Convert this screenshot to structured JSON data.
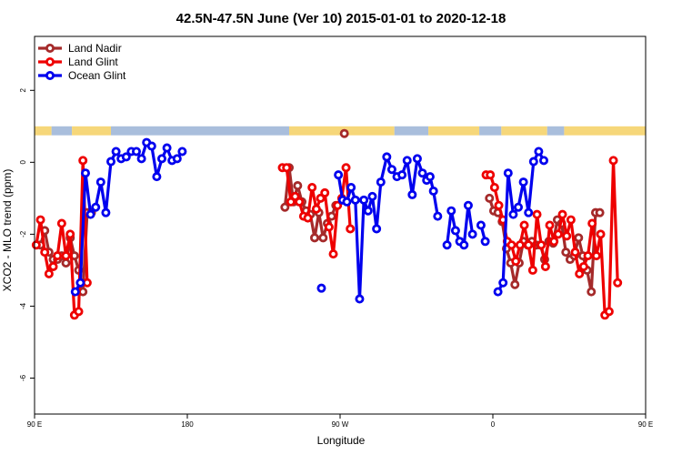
{
  "chart_data": {
    "type": "line",
    "title": "42.5N-47.5N June (Ver 10)   2015-01-01 to 2020-12-18",
    "xlabel": "Longitude",
    "ylabel": "XCO2 - MLO trend (ppm)",
    "xlim": [
      90,
      450
    ],
    "ylim": [
      -7,
      3.5
    ],
    "x_ticks": [
      {
        "value": 90,
        "label": "90 E"
      },
      {
        "value": 180,
        "label": "180"
      },
      {
        "value": 270,
        "label": "90 W"
      },
      {
        "value": 360,
        "label": "0"
      },
      {
        "value": 450,
        "label": "90 E"
      },
      {
        "value": 540,
        "label": "180"
      }
    ],
    "y_ticks": [
      {
        "value": -6,
        "label": "-6"
      },
      {
        "value": -4,
        "label": "-4"
      },
      {
        "value": -2,
        "label": "-2"
      },
      {
        "value": 0,
        "label": "0"
      },
      {
        "value": 2,
        "label": "2"
      }
    ],
    "grid": false,
    "legend_position": "top-left",
    "surface_band": {
      "y_range": [
        0.75,
        1.0
      ],
      "land_color": "#f6d77a",
      "ocean_color": "#a9bedc",
      "segments": [
        {
          "from": 90,
          "to": 100,
          "type": "land"
        },
        {
          "from": 100,
          "to": 112,
          "type": "ocean"
        },
        {
          "from": 112,
          "to": 135,
          "type": "land"
        },
        {
          "from": 135,
          "to": 240,
          "type": "ocean"
        },
        {
          "from": 240,
          "to": 302,
          "type": "land"
        },
        {
          "from": 302,
          "to": 322,
          "type": "ocean"
        },
        {
          "from": 322,
          "to": 352,
          "type": "land"
        },
        {
          "from": 352,
          "to": 365,
          "type": "ocean"
        },
        {
          "from": 365,
          "to": 392,
          "type": "land"
        },
        {
          "from": 392,
          "to": 402,
          "type": "ocean"
        },
        {
          "from": 402,
          "to": 450,
          "type": "land"
        },
        {
          "from": 450,
          "to": 472,
          "type": "ocean"
        },
        {
          "from": 472,
          "to": 495,
          "type": "land"
        },
        {
          "from": 495,
          "to": 540,
          "type": "ocean"
        }
      ]
    },
    "series": [
      {
        "name": "Land Nadir",
        "color": "#a52a2a",
        "segments": [
          [
            [
              93.5,
              -2.3
            ],
            [
              96,
              -1.9
            ],
            [
              98.5,
              -2.5
            ],
            [
              101,
              -2.7
            ],
            [
              103.5,
              -2.7
            ],
            [
              106,
              -2.6
            ],
            [
              108.5,
              -2.8
            ],
            [
              111,
              -2.1
            ],
            [
              113.5,
              -2.6
            ],
            [
              116,
              -3.0
            ],
            [
              118.5,
              -3.6
            ],
            [
              121,
              -1.4
            ],
            [
              123.5,
              -1.4
            ]
          ],
          [
            [
              237.5,
              -1.25
            ],
            [
              240,
              -0.15
            ],
            [
              242.5,
              -1.1
            ],
            [
              245,
              -0.65
            ],
            [
              247.5,
              -1.1
            ],
            [
              250,
              -1.35
            ],
            [
              252.5,
              -1.45
            ],
            [
              255,
              -2.1
            ],
            [
              257.5,
              -1.4
            ],
            [
              260,
              -2.1
            ],
            [
              262.5,
              -1.7
            ],
            [
              265,
              -1.5
            ],
            [
              267.5,
              -1.2
            ]
          ],
          [
            [
              272.5,
              0.8
            ]
          ],
          [
            [
              358,
              -1.0
            ],
            [
              360.5,
              -1.35
            ],
            [
              363,
              -1.4
            ],
            [
              365.5,
              -1.65
            ],
            [
              368,
              -2.4
            ],
            [
              370.5,
              -2.8
            ],
            [
              373,
              -3.4
            ],
            [
              375.5,
              -2.8
            ],
            [
              378,
              -2.2
            ],
            [
              380.5,
              -2.3
            ],
            [
              383,
              -2.2
            ],
            [
              385.5,
              -2.3
            ],
            [
              388,
              -2.3
            ],
            [
              390.5,
              -2.7
            ],
            [
              393,
              -2.2
            ],
            [
              395.5,
              -2.25
            ],
            [
              398,
              -1.6
            ],
            [
              400.5,
              -1.7
            ],
            [
              403,
              -2.5
            ],
            [
              405.5,
              -2.7
            ],
            [
              408,
              -2.6
            ],
            [
              410.5,
              -2.1
            ],
            [
              413,
              -2.6
            ],
            [
              415.5,
              -3.0
            ],
            [
              418,
              -3.6
            ],
            [
              420.5,
              -1.4
            ],
            [
              423,
              -1.4
            ]
          ]
        ]
      },
      {
        "name": "Land Glint",
        "color": "#ee0000",
        "segments": [
          [
            [
              91,
              -2.3
            ],
            [
              93.5,
              -1.6
            ],
            [
              96,
              -2.5
            ],
            [
              98.5,
              -3.1
            ],
            [
              101,
              -2.9
            ],
            [
              103.5,
              -2.6
            ],
            [
              106,
              -1.7
            ],
            [
              108.5,
              -2.6
            ],
            [
              111,
              -2.0
            ],
            [
              113.5,
              -4.25
            ],
            [
              116,
              -4.15
            ],
            [
              118.5,
              0.05
            ],
            [
              121,
              -3.35
            ]
          ],
          [
            [
              236,
              -0.15
            ],
            [
              238.5,
              -0.15
            ],
            [
              241,
              -1.1
            ],
            [
              243.5,
              -0.95
            ],
            [
              246,
              -1.1
            ],
            [
              248.5,
              -1.5
            ],
            [
              251,
              -1.55
            ],
            [
              253.5,
              -0.7
            ],
            [
              256,
              -1.3
            ],
            [
              258.5,
              -1.0
            ],
            [
              261,
              -0.85
            ],
            [
              263.5,
              -1.8
            ],
            [
              266,
              -2.55
            ],
            [
              268.5,
              -1.2
            ],
            [
              271,
              -1.0
            ],
            [
              273.5,
              -0.15
            ],
            [
              276,
              -1.85
            ]
          ],
          [
            [
              356,
              -0.35
            ],
            [
              358.5,
              -0.35
            ],
            [
              361,
              -0.7
            ],
            [
              363.5,
              -1.2
            ],
            [
              366,
              -1.6
            ],
            [
              368.5,
              -2.2
            ],
            [
              371,
              -2.3
            ],
            [
              373.5,
              -2.75
            ],
            [
              376,
              -2.3
            ],
            [
              378.5,
              -1.75
            ],
            [
              381,
              -2.3
            ],
            [
              383.5,
              -3.0
            ],
            [
              386,
              -1.45
            ],
            [
              388.5,
              -2.3
            ],
            [
              391,
              -2.9
            ],
            [
              393.5,
              -1.75
            ],
            [
              396,
              -2.2
            ],
            [
              398.5,
              -2.0
            ],
            [
              401,
              -1.45
            ],
            [
              403.5,
              -2.05
            ],
            [
              406,
              -1.6
            ],
            [
              408.5,
              -2.5
            ],
            [
              411,
              -3.1
            ],
            [
              413.5,
              -2.9
            ],
            [
              416,
              -2.6
            ],
            [
              418.5,
              -1.7
            ],
            [
              421,
              -2.6
            ],
            [
              423.5,
              -2.0
            ],
            [
              426,
              -4.25
            ],
            [
              428.5,
              -4.15
            ],
            [
              431,
              0.05
            ],
            [
              433.5,
              -3.35
            ]
          ]
        ]
      },
      {
        "name": "Ocean Glint",
        "color": "#0000ee",
        "segments": [
          [
            [
              114,
              -3.6
            ],
            [
              117,
              -3.35
            ],
            [
              120,
              -0.3
            ],
            [
              123,
              -1.45
            ],
            [
              126,
              -1.25
            ],
            [
              129,
              -0.55
            ],
            [
              132,
              -1.4
            ],
            [
              135,
              0.02
            ],
            [
              138,
              0.3
            ],
            [
              141,
              0.1
            ],
            [
              144,
              0.15
            ],
            [
              147,
              0.3
            ],
            [
              150,
              0.3
            ],
            [
              153,
              0.1
            ],
            [
              156,
              0.55
            ],
            [
              159,
              0.45
            ],
            [
              162,
              -0.4
            ],
            [
              165,
              0.1
            ],
            [
              168,
              0.4
            ],
            [
              171,
              0.05
            ],
            [
              174,
              0.1
            ],
            [
              177,
              0.3
            ]
          ],
          [
            [
              259,
              -3.5
            ]
          ],
          [
            [
              269,
              -0.35
            ],
            [
              271.5,
              -1.05
            ],
            [
              274,
              -1.1
            ],
            [
              276.5,
              -0.7
            ],
            [
              279,
              -1.05
            ],
            [
              281.5,
              -3.8
            ],
            [
              284,
              -1.05
            ],
            [
              286.5,
              -1.35
            ],
            [
              289,
              -0.95
            ],
            [
              291.5,
              -1.85
            ],
            [
              294,
              -0.55
            ],
            [
              297.5,
              0.15
            ],
            [
              300.5,
              -0.2
            ],
            [
              303.5,
              -0.4
            ],
            [
              306.5,
              -0.35
            ],
            [
              309.5,
              0.05
            ],
            [
              312.5,
              -0.9
            ],
            [
              315.5,
              0.1
            ],
            [
              318.5,
              -0.3
            ],
            [
              321,
              -0.5
            ],
            [
              323,
              -0.4
            ],
            [
              325,
              -0.8
            ],
            [
              327.5,
              -1.5
            ]
          ],
          [
            [
              333,
              -2.3
            ],
            [
              335.5,
              -1.35
            ],
            [
              338,
              -1.9
            ],
            [
              340.5,
              -2.2
            ],
            [
              343,
              -2.3
            ],
            [
              345.5,
              -1.2
            ],
            [
              348,
              -2.0
            ]
          ],
          [
            [
              353,
              -1.75
            ],
            [
              355.5,
              -2.2
            ]
          ],
          [
            [
              363,
              -3.6
            ],
            [
              366,
              -3.35
            ],
            [
              369,
              -0.3
            ],
            [
              372,
              -1.45
            ],
            [
              375,
              -1.25
            ],
            [
              378,
              -0.55
            ],
            [
              381,
              -1.4
            ],
            [
              384,
              0.02
            ],
            [
              387,
              0.3
            ],
            [
              390,
              0.05
            ]
          ]
        ]
      }
    ]
  }
}
